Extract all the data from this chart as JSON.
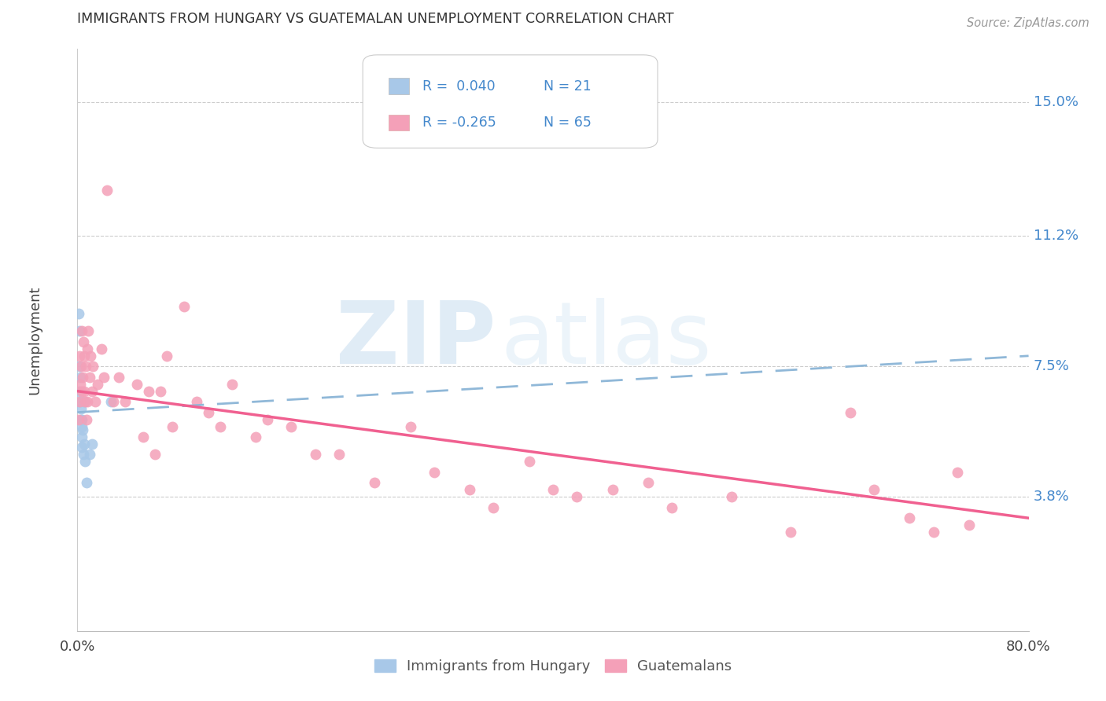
{
  "title": "IMMIGRANTS FROM HUNGARY VS GUATEMALAN UNEMPLOYMENT CORRELATION CHART",
  "source": "Source: ZipAtlas.com",
  "ylabel": "Unemployment",
  "y_ticks": [
    3.8,
    7.5,
    11.2,
    15.0
  ],
  "y_tick_labels": [
    "3.8%",
    "7.5%",
    "11.2%",
    "15.0%"
  ],
  "x_lim": [
    0.0,
    80.0
  ],
  "y_lim": [
    0.0,
    16.5
  ],
  "blue_color": "#a8c8e8",
  "pink_color": "#f4a0b8",
  "blue_line_color": "#90b8d8",
  "pink_line_color": "#f06090",
  "r_n_color": "#4488cc",
  "watermark_zip": "ZIP",
  "watermark_atlas": "atlas",
  "hungary_x": [
    0.1,
    0.15,
    0.2,
    0.2,
    0.25,
    0.25,
    0.3,
    0.3,
    0.35,
    0.35,
    0.4,
    0.4,
    0.45,
    0.5,
    0.55,
    0.6,
    0.65,
    0.75,
    1.0,
    1.2,
    2.8
  ],
  "hungary_y": [
    9.0,
    8.5,
    7.5,
    6.8,
    7.2,
    6.5,
    6.3,
    6.0,
    5.8,
    5.5,
    6.0,
    5.2,
    5.7,
    5.0,
    6.5,
    5.3,
    4.8,
    4.2,
    5.0,
    5.3,
    6.5
  ],
  "guatemala_x": [
    0.1,
    0.15,
    0.2,
    0.25,
    0.3,
    0.35,
    0.4,
    0.45,
    0.5,
    0.55,
    0.6,
    0.65,
    0.7,
    0.75,
    0.8,
    0.85,
    0.9,
    1.0,
    1.1,
    1.2,
    1.3,
    1.5,
    1.7,
    2.0,
    2.2,
    2.5,
    3.0,
    3.5,
    4.0,
    5.0,
    5.5,
    6.0,
    6.5,
    7.0,
    7.5,
    8.0,
    9.0,
    10.0,
    11.0,
    12.0,
    13.0,
    15.0,
    16.0,
    18.0,
    20.0,
    22.0,
    25.0,
    28.0,
    30.0,
    33.0,
    35.0,
    38.0,
    40.0,
    42.0,
    45.0,
    48.0,
    50.0,
    55.0,
    60.0,
    65.0,
    67.0,
    70.0,
    72.0,
    74.0,
    75.0
  ],
  "guatemala_y": [
    6.0,
    7.8,
    6.5,
    7.0,
    7.5,
    6.8,
    8.5,
    7.2,
    8.2,
    6.8,
    7.8,
    6.5,
    7.5,
    6.0,
    8.0,
    6.5,
    8.5,
    7.2,
    7.8,
    6.8,
    7.5,
    6.5,
    7.0,
    8.0,
    7.2,
    12.5,
    6.5,
    7.2,
    6.5,
    7.0,
    5.5,
    6.8,
    5.0,
    6.8,
    7.8,
    5.8,
    9.2,
    6.5,
    6.2,
    5.8,
    7.0,
    5.5,
    6.0,
    5.8,
    5.0,
    5.0,
    4.2,
    5.8,
    4.5,
    4.0,
    3.5,
    4.8,
    4.0,
    3.8,
    4.0,
    4.2,
    3.5,
    3.8,
    2.8,
    6.2,
    4.0,
    3.2,
    2.8,
    4.5,
    3.0
  ],
  "hungary_trend_x": [
    0.0,
    80.0
  ],
  "hungary_trend_y_start": 6.2,
  "hungary_trend_y_end": 7.8,
  "guatemala_trend_x": [
    0.0,
    80.0
  ],
  "guatemala_trend_y_start": 6.8,
  "guatemala_trend_y_end": 3.2
}
